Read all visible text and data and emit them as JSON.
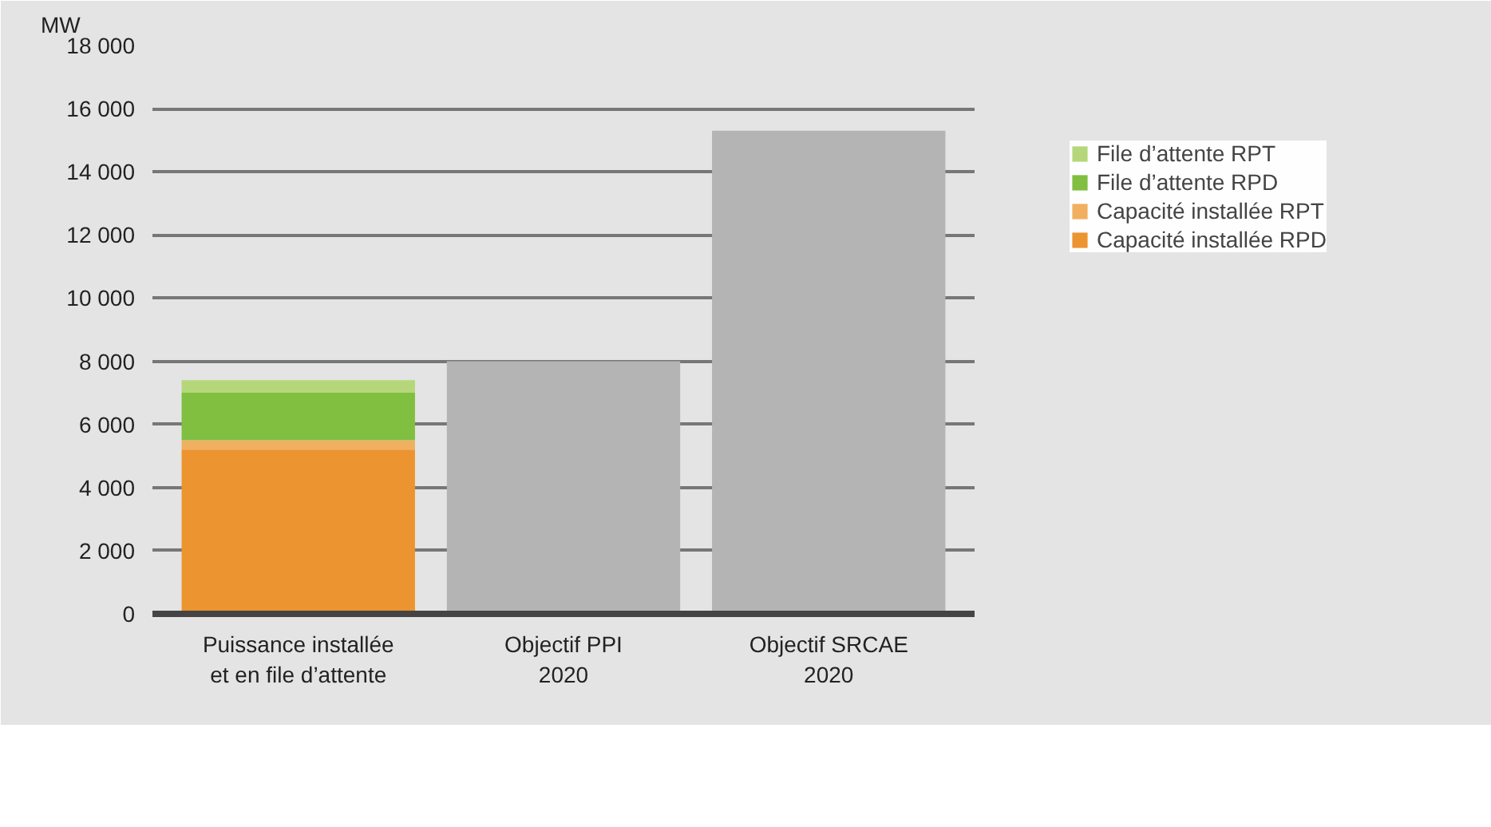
{
  "chart_data": {
    "type": "bar",
    "stacked": true,
    "ylabel": "MW",
    "categories": [
      "Puissance installée\net en file d’attente",
      "Objectif PPI\n2020",
      "Objectif SRCAE\n2020"
    ],
    "series": [
      {
        "name": "Capacité installée RPD",
        "color": "#ec9430",
        "values": [
          5200,
          null,
          null
        ]
      },
      {
        "name": "Capacité installée RPT",
        "color": "#f0b060",
        "values": [
          300,
          null,
          null
        ]
      },
      {
        "name": "File d’attente RPD",
        "color": "#80bf40",
        "values": [
          1500,
          null,
          null
        ]
      },
      {
        "name": "File d’attente RPT",
        "color": "#b5d77a",
        "values": [
          400,
          null,
          null
        ]
      },
      {
        "color": "#b4b4b4",
        "values": [
          null,
          8000,
          15300
        ]
      }
    ],
    "ylim": [
      0,
      18000
    ],
    "yticks": [
      0,
      {
        "value": 2000,
        "label": "2 000"
      },
      {
        "value": 4000,
        "label": "4 000"
      },
      {
        "value": 6000,
        "label": "6 000"
      },
      {
        "value": 8000,
        "label": "8 000"
      },
      {
        "value": 10000,
        "label": "10 000"
      },
      {
        "value": 12000,
        "label": "12 000"
      },
      {
        "value": 14000,
        "label": "14 000"
      },
      {
        "value": 16000,
        "label": "16 000"
      },
      {
        "value": 18000,
        "label": "18 000"
      }
    ],
    "grid": "y",
    "legend": "right"
  }
}
